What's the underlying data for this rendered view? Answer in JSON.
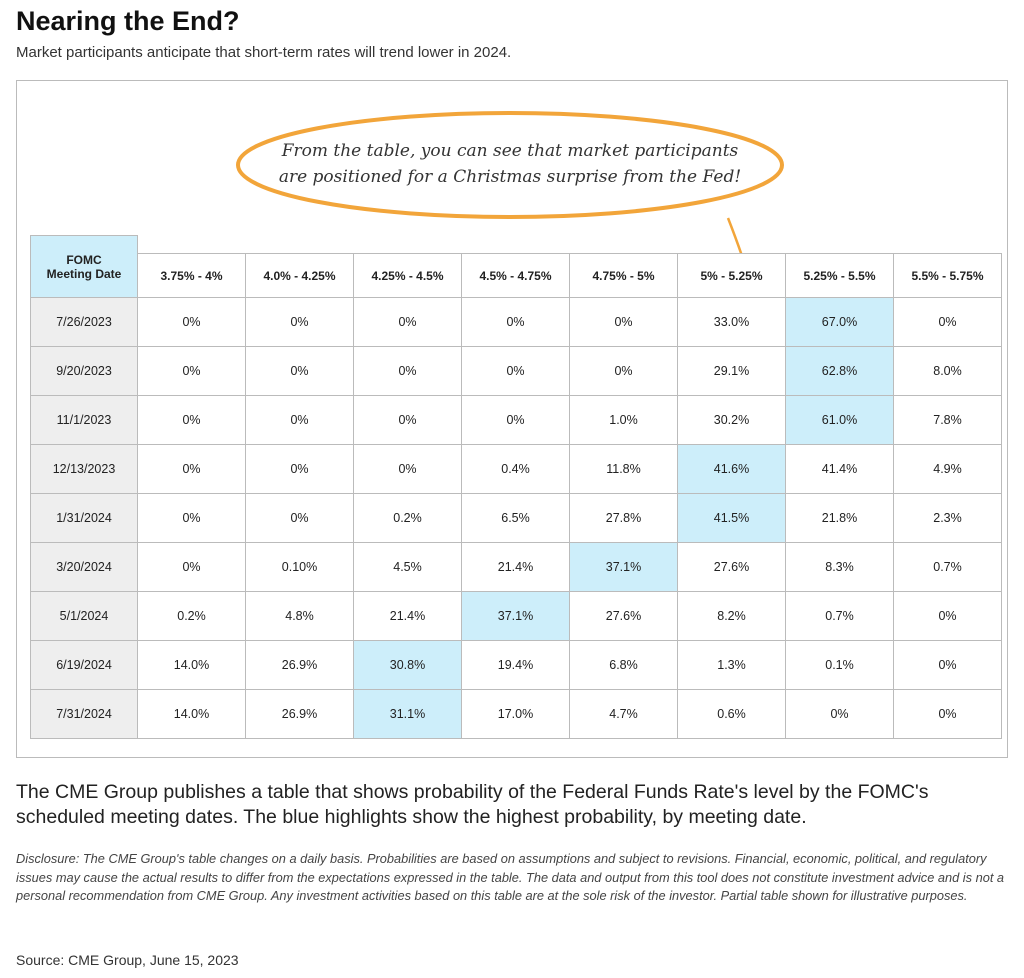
{
  "header": {
    "title": "Nearing the End?",
    "subtitle": "Market participants anticipate that short-term rates will trend lower in 2024."
  },
  "callout": {
    "lines": [
      "From the table, you can see that market participants",
      "are positioned for a Christmas surprise from the Fed!"
    ]
  },
  "table": {
    "header": [
      "FOMC Meeting Date",
      "3.75% - 4%",
      "4.0% - 4.25%",
      "4.25% - 4.5%",
      "4.5% - 4.75%",
      "4.75% - 5%",
      "5% - 5.25%",
      "5.25% - 5.5%",
      "5.5% - 5.75%"
    ],
    "rows": [
      [
        "7/26/2023",
        "0%",
        "0%",
        "0%",
        "0%",
        "0%",
        "33.0%",
        "67.0%",
        "0%"
      ],
      [
        "9/20/2023",
        "0%",
        "0%",
        "0%",
        "0%",
        "0%",
        "29.1%",
        "62.8%",
        "8.0%"
      ],
      [
        "11/1/2023",
        "0%",
        "0%",
        "0%",
        "0%",
        "1.0%",
        "30.2%",
        "61.0%",
        "7.8%"
      ],
      [
        "12/13/2023",
        "0%",
        "0%",
        "0%",
        "0.4%",
        "11.8%",
        "41.6%",
        "41.4%",
        "4.9%"
      ],
      [
        "1/31/2024",
        "0%",
        "0%",
        "0.2%",
        "6.5%",
        "27.8%",
        "41.5%",
        "21.8%",
        "2.3%"
      ],
      [
        "3/20/2024",
        "0%",
        "0.10%",
        "4.5%",
        "21.4%",
        "37.1%",
        "27.6%",
        "8.3%",
        "0.7%"
      ],
      [
        "5/1/2024",
        "0.2%",
        "4.8%",
        "21.4%",
        "37.1%",
        "27.6%",
        "8.2%",
        "0.7%",
        "0%"
      ],
      [
        "6/19/2024",
        "14.0%",
        "26.9%",
        "30.8%",
        "19.4%",
        "6.8%",
        "1.3%",
        "0.1%",
        "0%"
      ],
      [
        "7/31/2024",
        "14.0%",
        "26.9%",
        "31.1%",
        "17.0%",
        "4.7%",
        "0.6%",
        "0%",
        "0%"
      ]
    ],
    "highlight_columns": [
      7,
      7,
      7,
      6,
      6,
      5,
      4,
      3,
      3
    ],
    "highlight_color": "#cdeefa"
  },
  "body": "The CME Group publishes a table that shows probability of the Federal Funds Rate's level by the FOMC's scheduled meeting dates. The blue highlights show the highest probability, by meeting date.",
  "disclosure": "Disclosure: The CME Group's table changes on a daily basis. Probabilities are based on assumptions and subject to revisions. Financial, economic, political, and regulatory issues may cause the actual results to differ from the expectations expressed in the table. The data and output from this tool does not constitute investment advice and is not a personal recommendation from CME Group. Any investment activities based on this table are at the sole risk of the investor. Partial table shown for illustrative purposes.",
  "source": "Source: CME Group, June 15, 2023"
}
